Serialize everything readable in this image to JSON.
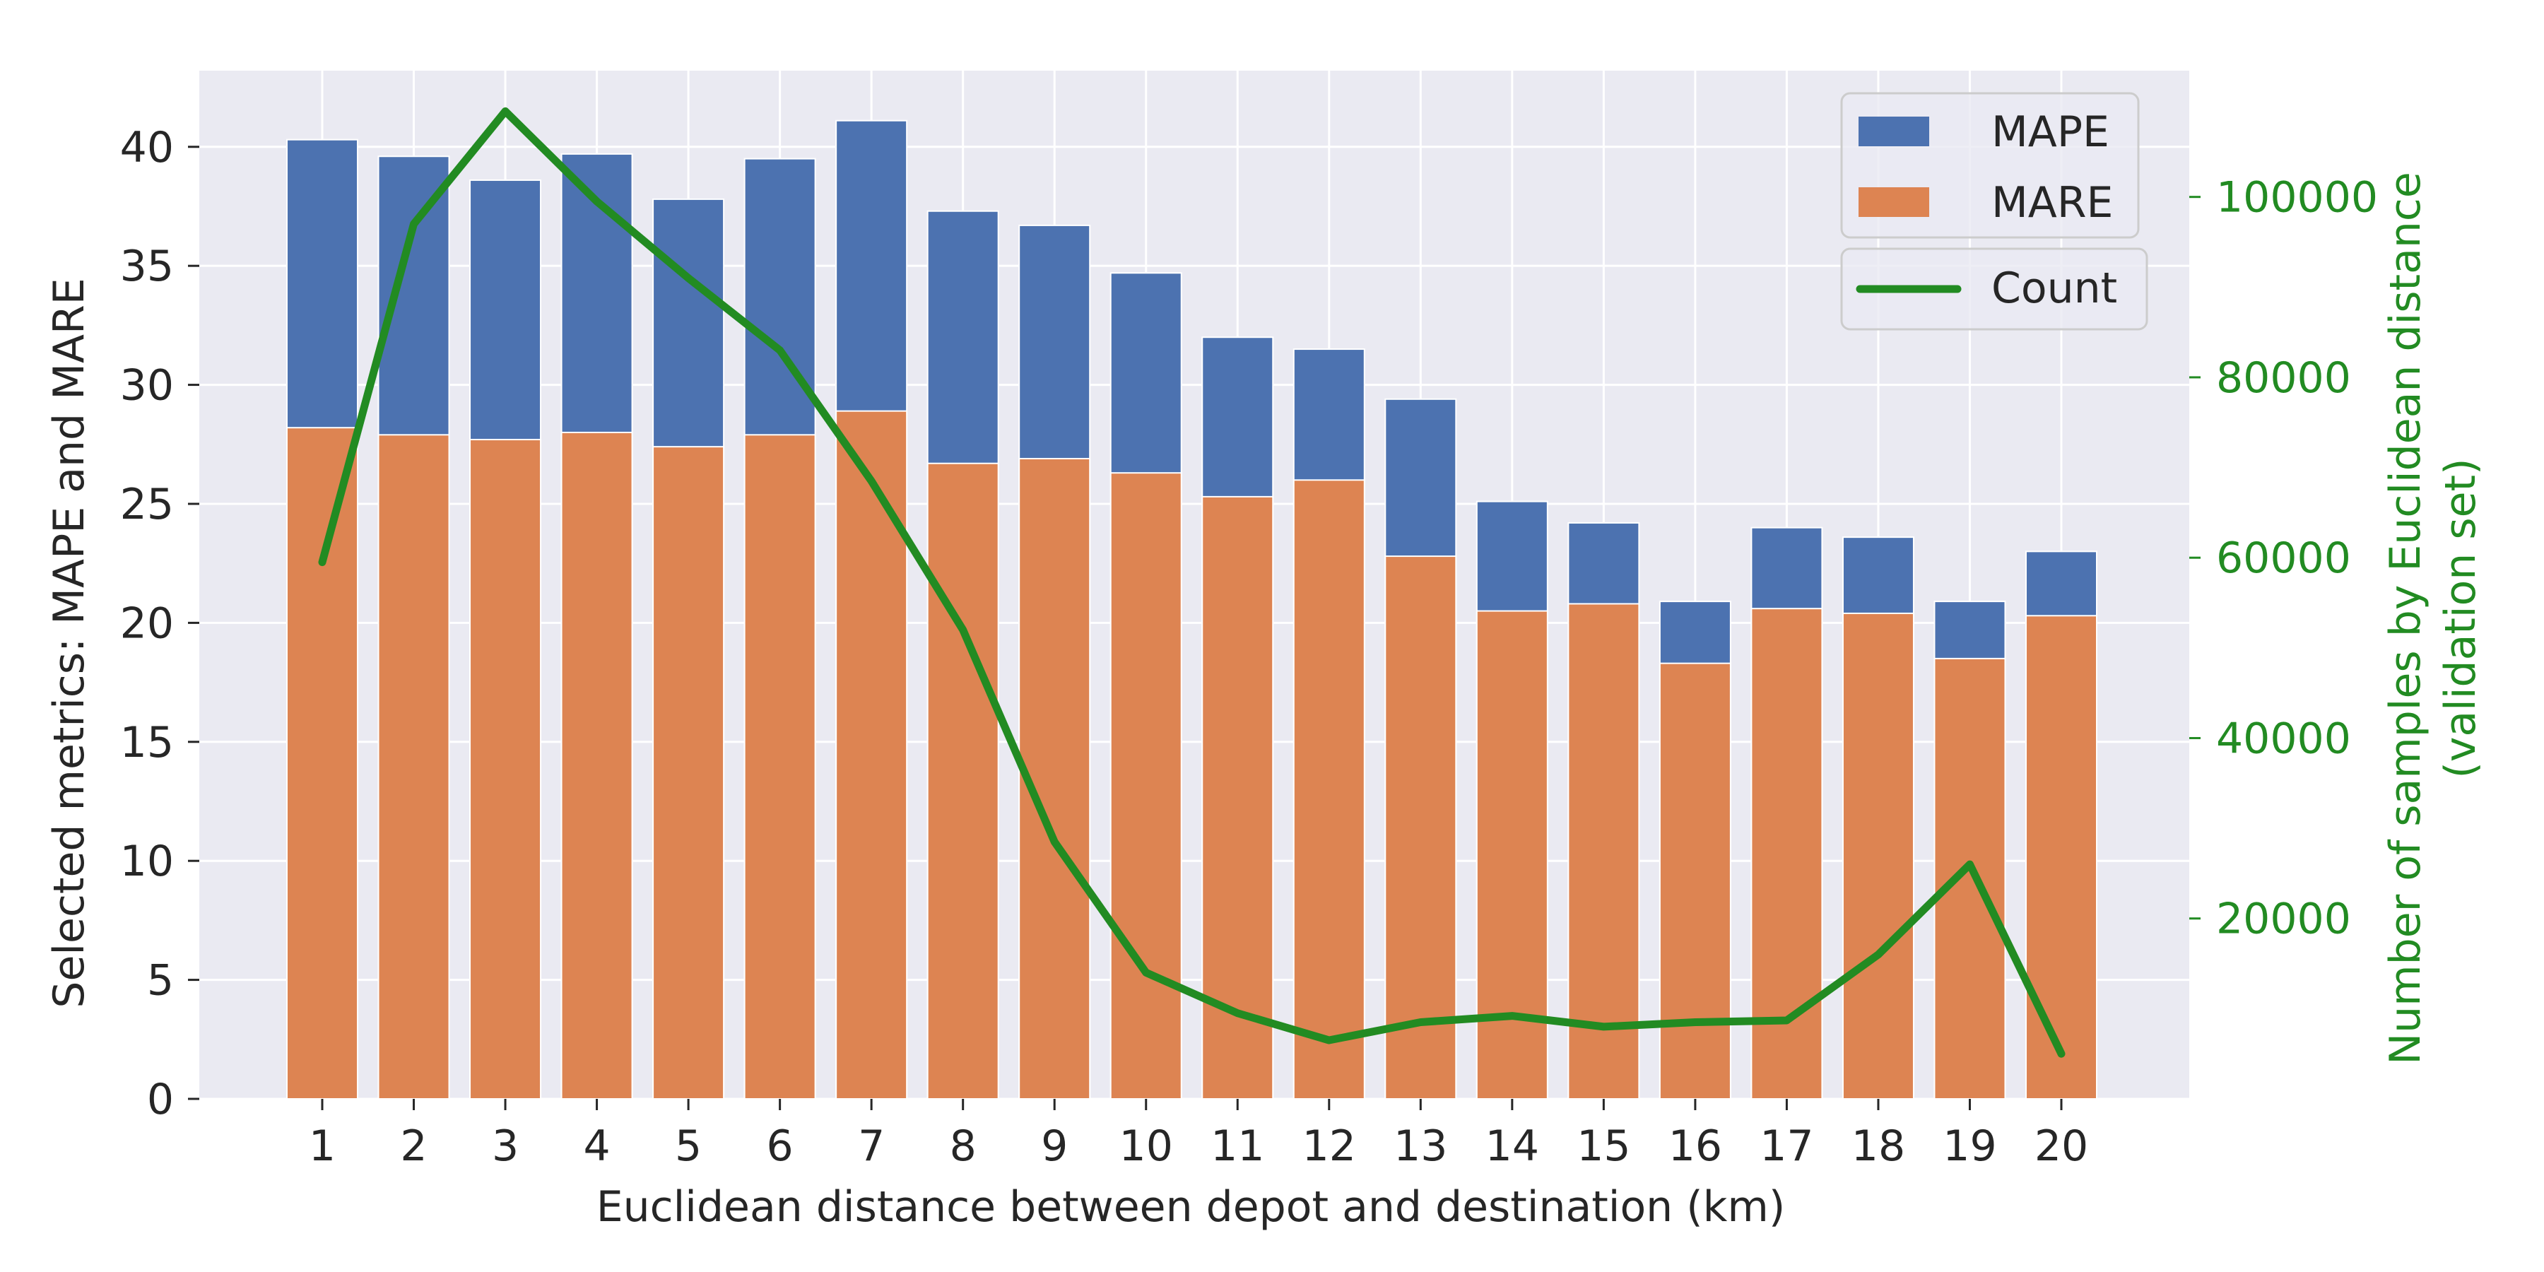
{
  "chart_data": {
    "type": "bar",
    "categories": [
      "1",
      "2",
      "3",
      "4",
      "5",
      "6",
      "7",
      "8",
      "9",
      "10",
      "11",
      "12",
      "13",
      "14",
      "15",
      "16",
      "17",
      "18",
      "19",
      "20"
    ],
    "series": [
      {
        "name": "MAPE",
        "kind": "bar",
        "color": "#4c72b0",
        "values": [
          40.3,
          39.6,
          38.6,
          39.7,
          37.8,
          39.5,
          41.1,
          37.3,
          36.7,
          34.7,
          32.0,
          31.5,
          29.4,
          25.1,
          24.2,
          20.9,
          24.0,
          23.6,
          20.9,
          23.0
        ]
      },
      {
        "name": "MARE",
        "kind": "bar",
        "color": "#dd8452",
        "values": [
          28.2,
          27.9,
          27.7,
          28.0,
          27.4,
          27.9,
          28.9,
          26.7,
          26.9,
          26.3,
          25.3,
          26.0,
          22.8,
          20.5,
          20.8,
          18.3,
          20.6,
          20.4,
          18.5,
          20.3
        ]
      },
      {
        "name": "Count",
        "kind": "line",
        "axis": "right",
        "color": "#228b22",
        "values": [
          59500,
          97000,
          109500,
          99500,
          91000,
          83000,
          68500,
          52000,
          28500,
          14000,
          9500,
          6500,
          8500,
          9200,
          8000,
          8500,
          8700,
          16000,
          26000,
          5000
        ]
      }
    ],
    "xlabel": "Euclidean distance between depot and destination (km)",
    "ylabel": "Selected metrics: MAPE and MARE",
    "ylabel_right": "Number of samples by Euclidean distance (validation set)",
    "ylabel_right_lines": [
      "Number of samples by Euclidean distance",
      "(validation set)"
    ],
    "ylim": [
      0,
      43.2
    ],
    "ylim_right": [
      0,
      114000
    ],
    "yticks": [
      0,
      5,
      10,
      15,
      20,
      25,
      30,
      35,
      40
    ],
    "yticks_right": [
      20000,
      40000,
      60000,
      80000,
      100000
    ],
    "grid": true,
    "legend_position": "top-right",
    "background": "#eaeaf2"
  }
}
